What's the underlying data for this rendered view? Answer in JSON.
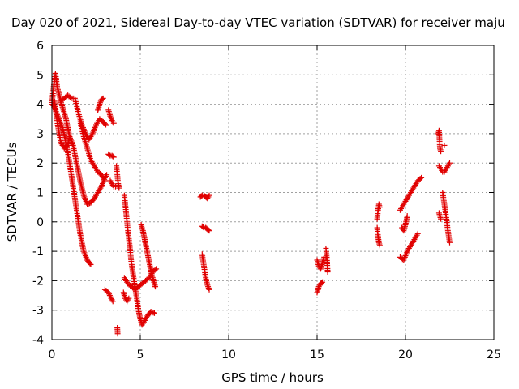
{
  "chart_data": {
    "type": "scatter",
    "title": "Day 020 of 2021, Sidereal Day-to-day VTEC variation (SDTVAR) for receiver maju",
    "xlabel": "GPS time / hours",
    "ylabel": "SDTVAR / TECUs",
    "xlim": [
      0,
      25
    ],
    "ylim": [
      -4,
      6
    ],
    "xticks": [
      "0",
      "5",
      "10",
      "15",
      "20",
      "25"
    ],
    "yticks": [
      "-4",
      "-3",
      "-2",
      "-1",
      "0",
      "1",
      "2",
      "3",
      "4",
      "5",
      "6"
    ],
    "grid": true,
    "marker": "plus",
    "color": "#e00000",
    "segments": [
      {
        "x": [
          0.0,
          0.1,
          0.2,
          0.3,
          0.5,
          0.6,
          0.7,
          0.8,
          0.9,
          1.0
        ],
        "y": [
          4.0,
          4.6,
          5.05,
          4.6,
          4.1,
          3.9,
          3.7,
          3.5,
          3.2,
          2.9
        ]
      },
      {
        "x": [
          0.05,
          0.2,
          0.4,
          0.6,
          0.8,
          1.0,
          1.2,
          1.4,
          1.6,
          1.8,
          2.0,
          2.2
        ],
        "y": [
          4.0,
          3.8,
          3.5,
          3.2,
          2.7,
          2.0,
          1.2,
          0.4,
          -0.4,
          -1.0,
          -1.3,
          -1.45
        ]
      },
      {
        "x": [
          0.15,
          0.3,
          0.5,
          0.7,
          0.9,
          1.0,
          1.2,
          1.4,
          1.6,
          1.8,
          2.0,
          2.2,
          2.4,
          2.6,
          2.8,
          3.0,
          3.1
        ],
        "y": [
          4.1,
          3.4,
          2.7,
          2.5,
          2.6,
          2.9,
          2.6,
          2.0,
          1.4,
          0.9,
          0.6,
          0.65,
          0.8,
          1.0,
          1.2,
          1.5,
          1.6
        ]
      },
      {
        "x": [
          0.5,
          0.7,
          0.9,
          1.1,
          1.3,
          1.5,
          1.7,
          1.9,
          2.1,
          2.3,
          2.5,
          2.7,
          2.9,
          3.05
        ],
        "y": [
          4.1,
          4.2,
          4.3,
          4.2,
          4.2,
          3.7,
          3.3,
          3.0,
          2.8,
          3.0,
          3.3,
          3.5,
          3.4,
          3.3
        ]
      },
      {
        "x": [
          1.6,
          1.8,
          2.0,
          2.2,
          2.4,
          2.6,
          2.8,
          3.0
        ],
        "y": [
          3.4,
          2.9,
          2.5,
          2.1,
          1.9,
          1.7,
          1.6,
          1.4
        ]
      },
      {
        "x": [
          2.6,
          2.7,
          2.8,
          2.9
        ],
        "y": [
          3.8,
          4.0,
          4.15,
          4.2
        ]
      },
      {
        "x": [
          3.2,
          3.3,
          3.4,
          3.5
        ],
        "y": [
          3.8,
          3.6,
          3.45,
          3.35
        ]
      },
      {
        "x": [
          3.2,
          3.3,
          3.4,
          3.5
        ],
        "y": [
          2.3,
          2.25,
          2.25,
          2.2
        ]
      },
      {
        "x": [
          3.3,
          3.4,
          3.5,
          3.6
        ],
        "y": [
          1.4,
          1.3,
          1.2,
          1.2
        ]
      },
      {
        "x": [
          3.65,
          3.7,
          3.75,
          3.8
        ],
        "y": [
          1.9,
          1.6,
          1.3,
          1.15
        ]
      },
      {
        "x": [
          3.0,
          3.2,
          3.35,
          3.45
        ],
        "y": [
          -2.3,
          -2.4,
          -2.6,
          -2.7
        ]
      },
      {
        "x": [
          3.7,
          3.72
        ],
        "y": [
          -3.6,
          -3.8
        ]
      },
      {
        "x": [
          4.1,
          4.2,
          4.3,
          4.4,
          4.5,
          4.6,
          4.7,
          4.8,
          4.9,
          5.0,
          5.1,
          5.2,
          5.4,
          5.6,
          5.8
        ],
        "y": [
          0.9,
          0.3,
          -0.3,
          -0.8,
          -1.4,
          -1.8,
          -2.2,
          -2.6,
          -3.0,
          -3.3,
          -3.5,
          -3.4,
          -3.2,
          -3.05,
          -3.1
        ]
      },
      {
        "x": [
          4.1,
          4.3,
          4.5,
          4.7,
          4.9,
          5.1,
          5.3,
          5.5,
          5.7,
          5.9
        ],
        "y": [
          -1.9,
          -2.1,
          -2.2,
          -2.3,
          -2.2,
          -2.1,
          -2.0,
          -1.9,
          -1.7,
          -1.6
        ]
      },
      {
        "x": [
          4.05,
          4.15,
          4.25,
          4.35
        ],
        "y": [
          -2.4,
          -2.6,
          -2.7,
          -2.6
        ]
      },
      {
        "x": [
          5.05,
          5.15,
          5.25,
          5.35,
          5.45,
          5.55,
          5.65,
          5.75,
          5.85
        ],
        "y": [
          -0.1,
          -0.3,
          -0.6,
          -0.9,
          -1.2,
          -1.5,
          -1.8,
          -2.0,
          -2.2
        ]
      },
      {
        "x": [
          8.4,
          8.5,
          8.6,
          8.7,
          8.8,
          8.9
        ],
        "y": [
          0.85,
          0.9,
          0.9,
          0.85,
          0.8,
          0.9
        ]
      },
      {
        "x": [
          8.5,
          8.6,
          8.7,
          8.8,
          8.9
        ],
        "y": [
          -0.15,
          -0.2,
          -0.2,
          -0.25,
          -0.3
        ]
      },
      {
        "x": [
          8.5,
          8.6,
          8.7,
          8.8,
          8.9
        ],
        "y": [
          -1.1,
          -1.5,
          -1.9,
          -2.15,
          -2.3
        ]
      },
      {
        "x": [
          15.0,
          15.1,
          15.2,
          15.3,
          15.4,
          15.5
        ],
        "y": [
          -1.3,
          -1.5,
          -1.6,
          -1.4,
          -1.2,
          -1.2
        ]
      },
      {
        "x": [
          15.0,
          15.1,
          15.2,
          15.3
        ],
        "y": [
          -2.4,
          -2.2,
          -2.1,
          -2.05
        ]
      },
      {
        "x": [
          15.5,
          15.55,
          15.6
        ],
        "y": [
          -0.9,
          -1.2,
          -1.7
        ]
      },
      {
        "x": [
          18.4,
          18.45,
          18.5,
          18.55
        ],
        "y": [
          0.1,
          0.4,
          0.6,
          0.5
        ]
      },
      {
        "x": [
          18.4,
          18.45,
          18.5,
          18.55
        ],
        "y": [
          -0.2,
          -0.5,
          -0.7,
          -0.8
        ]
      },
      {
        "x": [
          19.7,
          19.9,
          20.1,
          20.3,
          20.5,
          20.7
        ],
        "y": [
          -1.2,
          -1.3,
          -1.0,
          -0.8,
          -0.6,
          -0.4
        ]
      },
      {
        "x": [
          19.7,
          19.9,
          20.1,
          20.3,
          20.5,
          20.7,
          20.9
        ],
        "y": [
          0.4,
          0.6,
          0.8,
          1.0,
          1.2,
          1.4,
          1.5
        ]
      },
      {
        "x": [
          19.8,
          19.9,
          20.0,
          20.1
        ],
        "y": [
          -0.2,
          -0.3,
          -0.1,
          0.2
        ]
      },
      {
        "x": [
          21.85,
          21.9,
          21.95,
          22.0
        ],
        "y": [
          3.0,
          3.1,
          2.5,
          2.4
        ]
      },
      {
        "x": [
          21.9,
          22.0,
          22.1,
          22.2,
          22.3,
          22.4,
          22.5
        ],
        "y": [
          1.9,
          1.8,
          1.7,
          1.7,
          1.8,
          1.9,
          2.0
        ]
      },
      {
        "x": [
          22.1,
          22.2,
          22.3,
          22.4,
          22.5
        ],
        "y": [
          1.0,
          0.6,
          0.2,
          -0.3,
          -0.7
        ]
      },
      {
        "x": [
          21.9,
          22.0
        ],
        "y": [
          0.3,
          0.1
        ]
      },
      {
        "x": [
          22.2
        ],
        "y": [
          2.6
        ]
      }
    ]
  }
}
